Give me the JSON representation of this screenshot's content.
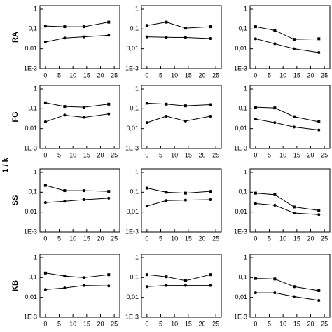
{
  "ylabel": "1 / k",
  "row_labels": [
    "RA",
    "FG",
    "SS",
    "KB"
  ],
  "chart_data": [
    {
      "type": "line",
      "x": [
        0,
        7,
        14,
        23
      ],
      "series": [
        {
          "marker": "square",
          "color": "#000",
          "values": [
            0.14,
            0.13,
            0.13,
            0.22
          ]
        },
        {
          "marker": "circle",
          "color": "#000",
          "values": [
            0.022,
            0.035,
            0.04,
            0.048
          ]
        }
      ],
      "xlim": [
        -2,
        27
      ],
      "xticks": [
        0,
        5,
        10,
        15,
        20,
        25
      ],
      "ylim": [
        0.001,
        1.5
      ],
      "log_y": true,
      "yticks": [
        {
          "value": 0.001,
          "label": "1E-3"
        },
        {
          "value": 0.01,
          "label": "0,01"
        },
        {
          "value": 0.1,
          "label": "0,1"
        },
        1
      ]
    },
    {
      "type": "line",
      "x": [
        0,
        7,
        14,
        23
      ],
      "series": [
        {
          "marker": "square",
          "color": "#000",
          "values": [
            0.15,
            0.22,
            0.11,
            0.13
          ]
        },
        {
          "marker": "circle",
          "color": "#000",
          "values": [
            0.04,
            0.038,
            0.037,
            0.033
          ]
        }
      ],
      "xlim": [
        -2,
        27
      ],
      "xticks": [
        0,
        5,
        10,
        15,
        20,
        25
      ],
      "ylim": [
        0.001,
        1.5
      ],
      "log_y": true,
      "yticks": [
        {
          "value": 0.001,
          "label": "1E-3"
        },
        {
          "value": 0.01,
          "label": "0,01"
        },
        {
          "value": 0.1,
          "label": "0,1"
        },
        1
      ]
    },
    {
      "type": "line",
      "x": [
        0,
        7,
        14,
        23
      ],
      "series": [
        {
          "marker": "square",
          "color": "#000",
          "values": [
            0.13,
            0.085,
            0.03,
            0.032
          ]
        },
        {
          "marker": "circle",
          "color": "#000",
          "values": [
            0.032,
            0.018,
            0.01,
            0.0065
          ]
        }
      ],
      "xlim": [
        -2,
        27
      ],
      "xticks": [
        0,
        5,
        10,
        15,
        20,
        25
      ],
      "ylim": [
        0.001,
        1.5
      ],
      "log_y": true,
      "yticks": [
        {
          "value": 0.001,
          "label": "1E-3"
        },
        {
          "value": 0.01,
          "label": "0,01"
        },
        {
          "value": 0.1,
          "label": "0,1"
        },
        1
      ]
    },
    {
      "type": "line",
      "x": [
        0,
        7,
        14,
        23
      ],
      "series": [
        {
          "marker": "square",
          "color": "#000",
          "values": [
            0.2,
            0.13,
            0.12,
            0.17
          ]
        },
        {
          "marker": "circle",
          "color": "#000",
          "values": [
            0.022,
            0.048,
            0.037,
            0.055
          ]
        }
      ],
      "xlim": [
        -2,
        27
      ],
      "xticks": [
        0,
        5,
        10,
        15,
        20,
        25
      ],
      "ylim": [
        0.001,
        1.5
      ],
      "log_y": true,
      "yticks": [
        {
          "value": 0.001,
          "label": "1E-3"
        },
        {
          "value": 0.01,
          "label": "0,01"
        },
        {
          "value": 0.1,
          "label": "0,1"
        },
        1
      ]
    },
    {
      "type": "line",
      "x": [
        0,
        7,
        14,
        23
      ],
      "series": [
        {
          "marker": "square",
          "color": "#000",
          "values": [
            0.19,
            0.17,
            0.14,
            0.16
          ]
        },
        {
          "marker": "circle",
          "color": "#000",
          "values": [
            0.02,
            0.042,
            0.024,
            0.042
          ]
        }
      ],
      "xlim": [
        -2,
        27
      ],
      "xticks": [
        0,
        5,
        10,
        15,
        20,
        25
      ],
      "ylim": [
        0.001,
        1.5
      ],
      "log_y": true,
      "yticks": [
        {
          "value": 0.001,
          "label": "1E-3"
        },
        {
          "value": 0.01,
          "label": "0,01"
        },
        {
          "value": 0.1,
          "label": "0,1"
        },
        1
      ]
    },
    {
      "type": "line",
      "x": [
        0,
        7,
        14,
        23
      ],
      "series": [
        {
          "marker": "square",
          "color": "#000",
          "values": [
            0.12,
            0.11,
            0.04,
            0.022
          ]
        },
        {
          "marker": "circle",
          "color": "#000",
          "values": [
            0.03,
            0.02,
            0.012,
            0.0085
          ]
        }
      ],
      "xlim": [
        -2,
        27
      ],
      "xticks": [
        0,
        5,
        10,
        15,
        20,
        25
      ],
      "ylim": [
        0.001,
        1.5
      ],
      "log_y": true,
      "yticks": [
        {
          "value": 0.001,
          "label": "1E-3"
        },
        {
          "value": 0.01,
          "label": "0,01"
        },
        {
          "value": 0.1,
          "label": "0,1"
        },
        1
      ]
    },
    {
      "type": "line",
      "x": [
        0,
        7,
        14,
        23
      ],
      "series": [
        {
          "marker": "square",
          "color": "#000",
          "values": [
            0.22,
            0.12,
            0.12,
            0.11
          ]
        },
        {
          "marker": "circle",
          "color": "#000",
          "values": [
            0.03,
            0.035,
            0.042,
            0.05
          ]
        }
      ],
      "xlim": [
        -2,
        27
      ],
      "xticks": [
        0,
        5,
        10,
        15,
        20,
        25
      ],
      "ylim": [
        0.001,
        1.5
      ],
      "log_y": true,
      "yticks": [
        {
          "value": 0.001,
          "label": "1E-3"
        },
        {
          "value": 0.01,
          "label": "0,01"
        },
        {
          "value": 0.1,
          "label": "0,1"
        },
        1
      ]
    },
    {
      "type": "line",
      "x": [
        0,
        7,
        14,
        23
      ],
      "series": [
        {
          "marker": "square",
          "color": "#000",
          "values": [
            0.16,
            0.1,
            0.09,
            0.11
          ]
        },
        {
          "marker": "circle",
          "color": "#000",
          "values": [
            0.02,
            0.038,
            0.04,
            0.042
          ]
        }
      ],
      "xlim": [
        -2,
        27
      ],
      "xticks": [
        0,
        5,
        10,
        15,
        20,
        25
      ],
      "ylim": [
        0.001,
        1.5
      ],
      "log_y": true,
      "yticks": [
        {
          "value": 0.001,
          "label": "1E-3"
        },
        {
          "value": 0.01,
          "label": "0,01"
        },
        {
          "value": 0.1,
          "label": "0,1"
        },
        1
      ]
    },
    {
      "type": "line",
      "x": [
        0,
        7,
        14,
        23
      ],
      "series": [
        {
          "marker": "square",
          "color": "#000",
          "values": [
            0.09,
            0.075,
            0.018,
            0.012
          ]
        },
        {
          "marker": "circle",
          "color": "#000",
          "values": [
            0.027,
            0.022,
            0.009,
            0.0075
          ]
        }
      ],
      "xlim": [
        -2,
        27
      ],
      "xticks": [
        0,
        5,
        10,
        15,
        20,
        25
      ],
      "ylim": [
        0.001,
        1.5
      ],
      "log_y": true,
      "yticks": [
        {
          "value": 0.001,
          "label": "1E-3"
        },
        {
          "value": 0.01,
          "label": "0,01"
        },
        {
          "value": 0.1,
          "label": "0,1"
        },
        1
      ]
    },
    {
      "type": "line",
      "x": [
        0,
        7,
        14,
        23
      ],
      "series": [
        {
          "marker": "square",
          "color": "#000",
          "values": [
            0.17,
            0.12,
            0.1,
            0.14
          ]
        },
        {
          "marker": "circle",
          "color": "#000",
          "values": [
            0.025,
            0.03,
            0.04,
            0.038
          ]
        }
      ],
      "xlim": [
        -2,
        27
      ],
      "xticks": [
        0,
        5,
        10,
        15,
        20,
        25
      ],
      "ylim": [
        0.001,
        1.5
      ],
      "log_y": true,
      "yticks": [
        {
          "value": 0.001,
          "label": "1E-3"
        },
        {
          "value": 0.01,
          "label": "0,01"
        },
        {
          "value": 0.1,
          "label": "0,1"
        },
        1
      ]
    },
    {
      "type": "line",
      "x": [
        0,
        7,
        14,
        23
      ],
      "series": [
        {
          "marker": "square",
          "color": "#000",
          "values": [
            0.14,
            0.11,
            0.07,
            0.14
          ]
        },
        {
          "marker": "circle",
          "color": "#000",
          "values": [
            0.035,
            0.04,
            0.04,
            0.04
          ]
        }
      ],
      "xlim": [
        -2,
        27
      ],
      "xticks": [
        0,
        5,
        10,
        15,
        20,
        25
      ],
      "ylim": [
        0.001,
        1.5
      ],
      "log_y": true,
      "yticks": [
        {
          "value": 0.001,
          "label": "1E-3"
        },
        {
          "value": 0.01,
          "label": "0,01"
        },
        {
          "value": 0.1,
          "label": "0,1"
        },
        1
      ]
    },
    {
      "type": "line",
      "x": [
        0,
        7,
        14,
        23
      ],
      "series": [
        {
          "marker": "square",
          "color": "#000",
          "values": [
            0.09,
            0.085,
            0.035,
            0.022
          ]
        },
        {
          "marker": "circle",
          "color": "#000",
          "values": [
            0.017,
            0.017,
            0.011,
            0.007
          ]
        }
      ],
      "xlim": [
        -2,
        27
      ],
      "xticks": [
        0,
        5,
        10,
        15,
        20,
        25
      ],
      "ylim": [
        0.001,
        1.5
      ],
      "log_y": true,
      "yticks": [
        {
          "value": 0.001,
          "label": "1E-3"
        },
        {
          "value": 0.01,
          "label": "0,01"
        },
        {
          "value": 0.1,
          "label": "0,1"
        },
        1
      ]
    }
  ]
}
